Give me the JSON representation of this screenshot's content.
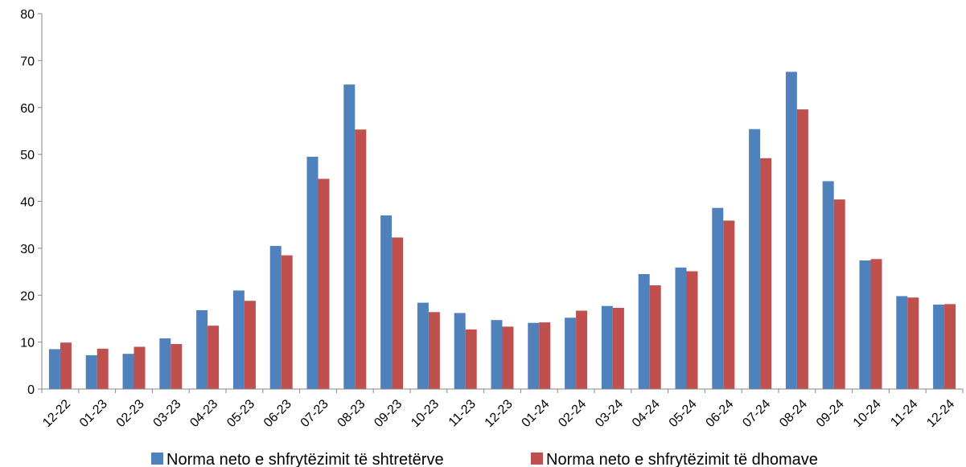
{
  "chart_data": {
    "type": "bar",
    "title": "",
    "xlabel": "",
    "ylabel": "",
    "ylim": [
      0,
      80
    ],
    "yticks": [
      0,
      10,
      20,
      30,
      40,
      50,
      60,
      70,
      80
    ],
    "grid": false,
    "legend_position": "bottom",
    "categories": [
      "12-22",
      "01-23",
      "02-23",
      "03-23",
      "04-23",
      "05-23",
      "06-23",
      "07-23",
      "08-23",
      "09-23",
      "10-23",
      "11-23",
      "12-23",
      "01-24",
      "02-24",
      "03-24",
      "04-24",
      "05-24",
      "06-24",
      "07-24",
      "08-24",
      "09-24",
      "10-24",
      "11-24",
      "12-24"
    ],
    "series": [
      {
        "name": "Norma neto e shfrytëzimit të shtretërve",
        "color": "#4F81BD",
        "values": [
          8.5,
          7.2,
          7.5,
          10.8,
          16.8,
          21.0,
          30.5,
          49.5,
          64.9,
          37.0,
          18.4,
          16.2,
          14.7,
          14.1,
          15.2,
          17.7,
          24.5,
          25.9,
          38.6,
          55.4,
          67.6,
          44.3,
          27.4,
          19.8,
          18.0
        ]
      },
      {
        "name": "Norma neto e shfrytëzimit të dhomave",
        "color": "#C0504D",
        "values": [
          9.9,
          8.6,
          9.0,
          9.6,
          13.5,
          18.8,
          28.5,
          44.8,
          55.3,
          32.3,
          16.4,
          12.7,
          13.3,
          14.2,
          16.7,
          17.3,
          22.1,
          25.1,
          35.9,
          49.2,
          59.6,
          40.4,
          27.7,
          19.5,
          18.1
        ]
      }
    ]
  }
}
